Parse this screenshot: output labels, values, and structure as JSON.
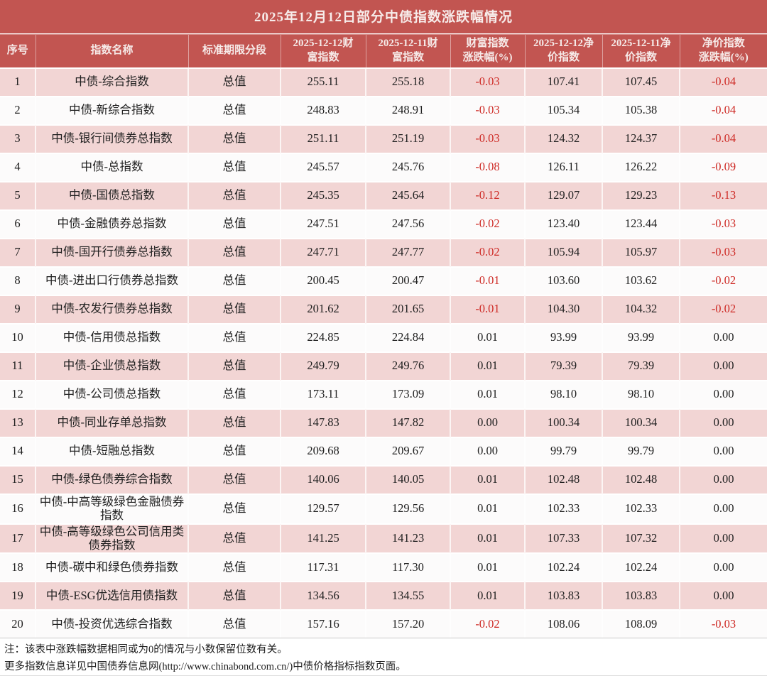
{
  "title": "2025年12月12日部分中债指数涨跌幅情况",
  "chart_data": {
    "type": "table",
    "title": "2025年12月12日部分中债指数涨跌幅情况",
    "columns": [
      "序号",
      "指数名称",
      "标准期限分段",
      "2025-12-12财\n富指数",
      "2025-12-11财\n富指数",
      "财富指数\n涨跌幅(%)",
      "2025-12-12净\n价指数",
      "2025-12-11净\n价指数",
      "净价指数\n涨跌幅(%)"
    ],
    "rows": [
      [
        "1",
        "中债-综合指数",
        "总值",
        "255.11",
        "255.18",
        "-0.03",
        "107.41",
        "107.45",
        "-0.04"
      ],
      [
        "2",
        "中债-新综合指数",
        "总值",
        "248.83",
        "248.91",
        "-0.03",
        "105.34",
        "105.38",
        "-0.04"
      ],
      [
        "3",
        "中债-银行间债券总指数",
        "总值",
        "251.11",
        "251.19",
        "-0.03",
        "124.32",
        "124.37",
        "-0.04"
      ],
      [
        "4",
        "中债-总指数",
        "总值",
        "245.57",
        "245.76",
        "-0.08",
        "126.11",
        "126.22",
        "-0.09"
      ],
      [
        "5",
        "中债-国债总指数",
        "总值",
        "245.35",
        "245.64",
        "-0.12",
        "129.07",
        "129.23",
        "-0.13"
      ],
      [
        "6",
        "中债-金融债券总指数",
        "总值",
        "247.51",
        "247.56",
        "-0.02",
        "123.40",
        "123.44",
        "-0.03"
      ],
      [
        "7",
        "中债-国开行债券总指数",
        "总值",
        "247.71",
        "247.77",
        "-0.02",
        "105.94",
        "105.97",
        "-0.03"
      ],
      [
        "8",
        "中债-进出口行债券总指数",
        "总值",
        "200.45",
        "200.47",
        "-0.01",
        "103.60",
        "103.62",
        "-0.02"
      ],
      [
        "9",
        "中债-农发行债券总指数",
        "总值",
        "201.62",
        "201.65",
        "-0.01",
        "104.30",
        "104.32",
        "-0.02"
      ],
      [
        "10",
        "中债-信用债总指数",
        "总值",
        "224.85",
        "224.84",
        "0.01",
        "93.99",
        "93.99",
        "0.00"
      ],
      [
        "11",
        "中债-企业债总指数",
        "总值",
        "249.79",
        "249.76",
        "0.01",
        "79.39",
        "79.39",
        "0.00"
      ],
      [
        "12",
        "中债-公司债总指数",
        "总值",
        "173.11",
        "173.09",
        "0.01",
        "98.10",
        "98.10",
        "0.00"
      ],
      [
        "13",
        "中债-同业存单总指数",
        "总值",
        "147.83",
        "147.82",
        "0.00",
        "100.34",
        "100.34",
        "0.00"
      ],
      [
        "14",
        "中债-短融总指数",
        "总值",
        "209.68",
        "209.67",
        "0.00",
        "99.79",
        "99.79",
        "0.00"
      ],
      [
        "15",
        "中债-绿色债券综合指数",
        "总值",
        "140.06",
        "140.05",
        "0.01",
        "102.48",
        "102.48",
        "0.00"
      ],
      [
        "16",
        "中债-中高等级绿色金融债券指数",
        "总值",
        "129.57",
        "129.56",
        "0.01",
        "102.33",
        "102.33",
        "0.00"
      ],
      [
        "17",
        "中债-高等级绿色公司信用类债券指数",
        "总值",
        "141.25",
        "141.23",
        "0.01",
        "107.33",
        "107.32",
        "0.00"
      ],
      [
        "18",
        "中债-碳中和绿色债券指数",
        "总值",
        "117.31",
        "117.30",
        "0.01",
        "102.24",
        "102.24",
        "0.00"
      ],
      [
        "19",
        "中债-ESG优选信用债指数",
        "总值",
        "134.56",
        "134.55",
        "0.01",
        "103.83",
        "103.83",
        "0.00"
      ],
      [
        "20",
        "中债-投资优选综合指数",
        "总值",
        "157.16",
        "157.20",
        "-0.02",
        "108.06",
        "108.09",
        "-0.03"
      ]
    ]
  },
  "notes": [
    "注：该表中涨跌幅数据相同或为0的情况与小数保留位数有关。",
    "更多指数信息详见中国债券信息网(http://www.chinabond.com.cn/)中债价格指标指数页面。"
  ],
  "colors": {
    "header_bg": "#c25551",
    "header_text": "#f6eae8",
    "row_pink": "#f2d5d4",
    "row_white": "#fcfbfb",
    "negative_text": "#ce2a25",
    "body_text": "#212121"
  }
}
